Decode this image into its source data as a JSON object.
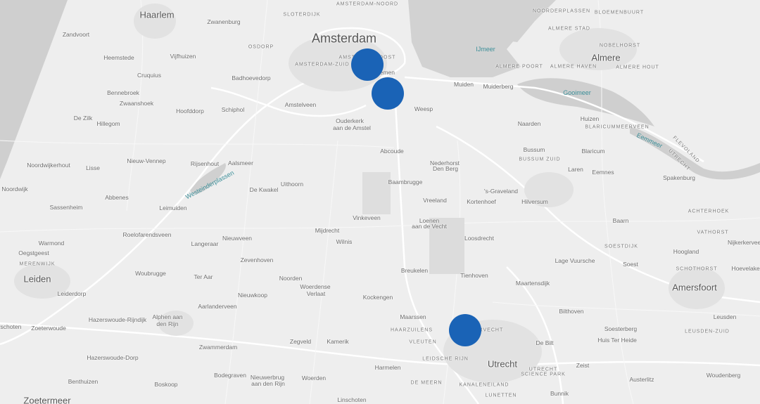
{
  "map": {
    "marker_color": "#1a63b6",
    "water_color": "#cfcfcf",
    "land_color": "#eeeeee",
    "markers": [
      {
        "name": "marker-amsterdam-oost"
      },
      {
        "name": "marker-amsterdam-duivendrecht"
      },
      {
        "name": "marker-utrecht-zuilen"
      }
    ],
    "labels": [
      {
        "text": "Haarlem",
        "kind": "city"
      },
      {
        "text": "Zandvoort",
        "kind": "town"
      },
      {
        "text": "Zwanenburg",
        "kind": "town"
      },
      {
        "text": "SLOTERDIJK",
        "kind": "caps"
      },
      {
        "text": "AMSTERDAM-NOORD",
        "kind": "caps"
      },
      {
        "text": "Amsterdam",
        "kind": "big"
      },
      {
        "text": "OSDORP",
        "kind": "caps"
      },
      {
        "text": "AMSTERDAM-OOST",
        "kind": "caps"
      },
      {
        "text": "AMSTERDAM-ZUID",
        "kind": "caps"
      },
      {
        "text": "Heemstede",
        "kind": "town"
      },
      {
        "text": "Vijfhuizen",
        "kind": "town"
      },
      {
        "text": "Cruquius",
        "kind": "town"
      },
      {
        "text": "Badhoevedorp",
        "kind": "town"
      },
      {
        "text": "Bennebroek",
        "kind": "town"
      },
      {
        "text": "Zwaanshoek",
        "kind": "town"
      },
      {
        "text": "Hoofddorp",
        "kind": "town"
      },
      {
        "text": "Schiphol",
        "kind": "town"
      },
      {
        "text": "Amstelveen",
        "kind": "town"
      },
      {
        "text": "Ouderkerk",
        "kind": "town"
      },
      {
        "text": "aan de Amstel",
        "kind": "town"
      },
      {
        "text": "Weesp",
        "kind": "town"
      },
      {
        "text": "Muiden",
        "kind": "town"
      },
      {
        "text": "Muiderberg",
        "kind": "town"
      },
      {
        "text": "IJmeer",
        "kind": "water"
      },
      {
        "text": "Gooimeer",
        "kind": "water"
      },
      {
        "text": "Naarden",
        "kind": "town"
      },
      {
        "text": "Huizen",
        "kind": "town"
      },
      {
        "text": "BLARICUMMEERVEEN",
        "kind": "caps"
      },
      {
        "text": "Eemmeer",
        "kind": "water"
      },
      {
        "text": "FLEVOLAND",
        "kind": "caps"
      },
      {
        "text": "UTRECHT",
        "kind": "caps"
      },
      {
        "text": "ALMERE STAD",
        "kind": "caps"
      },
      {
        "text": "NOORDERPLASSEN",
        "kind": "caps"
      },
      {
        "text": "BLOEMENBUURT",
        "kind": "caps"
      },
      {
        "text": "Almere",
        "kind": "city"
      },
      {
        "text": "NOBELHORST",
        "kind": "caps"
      },
      {
        "text": "ALMERE POORT",
        "kind": "caps"
      },
      {
        "text": "ALMERE HAVEN",
        "kind": "caps"
      },
      {
        "text": "ALMERE HOUT",
        "kind": "caps"
      },
      {
        "text": "De Zilk",
        "kind": "town"
      },
      {
        "text": "Hillegom",
        "kind": "town"
      },
      {
        "text": "Abcoude",
        "kind": "town"
      },
      {
        "text": "Bussum",
        "kind": "town"
      },
      {
        "text": "BUSSUM ZUID",
        "kind": "caps"
      },
      {
        "text": "Blaricum",
        "kind": "town"
      },
      {
        "text": "Laren",
        "kind": "town"
      },
      {
        "text": "Eemnes",
        "kind": "town"
      },
      {
        "text": "Spakenburg",
        "kind": "town"
      },
      {
        "text": "Nederhorst",
        "kind": "town"
      },
      {
        "text": "Den Berg",
        "kind": "town"
      },
      {
        "text": "Noordwijkerhout",
        "kind": "town"
      },
      {
        "text": "Lisse",
        "kind": "town"
      },
      {
        "text": "Nieuw-Vennep",
        "kind": "town"
      },
      {
        "text": "Rijsenhout",
        "kind": "town"
      },
      {
        "text": "Aalsmeer",
        "kind": "town"
      },
      {
        "text": "Westeinderplassen",
        "kind": "water"
      },
      {
        "text": "Baambrugge",
        "kind": "town"
      },
      {
        "text": "'s-Graveland",
        "kind": "town"
      },
      {
        "text": "Noordwijk",
        "kind": "town"
      },
      {
        "text": "Abbenes",
        "kind": "town"
      },
      {
        "text": "De Kwakel",
        "kind": "town"
      },
      {
        "text": "Uithoorn",
        "kind": "town"
      },
      {
        "text": "Vreeland",
        "kind": "town"
      },
      {
        "text": "Kortenhoef",
        "kind": "town"
      },
      {
        "text": "Hilversum",
        "kind": "town"
      },
      {
        "text": "Sassenheim",
        "kind": "town"
      },
      {
        "text": "Leimuiden",
        "kind": "town"
      },
      {
        "text": "ACHTERHOEK",
        "kind": "caps"
      },
      {
        "text": "Vinkeveen",
        "kind": "town"
      },
      {
        "text": "Loenen",
        "kind": "town"
      },
      {
        "text": "aan de Vecht",
        "kind": "town"
      },
      {
        "text": "Baarn",
        "kind": "town"
      },
      {
        "text": "Roelofarendsveen",
        "kind": "town"
      },
      {
        "text": "Mijdrecht",
        "kind": "town"
      },
      {
        "text": "VATHORST",
        "kind": "caps"
      },
      {
        "text": "Nijkerkerveen",
        "kind": "town"
      },
      {
        "text": "Warmond",
        "kind": "town"
      },
      {
        "text": "Langeraar",
        "kind": "town"
      },
      {
        "text": "Nieuwveen",
        "kind": "town"
      },
      {
        "text": "Wilnis",
        "kind": "town"
      },
      {
        "text": "Loosdrecht",
        "kind": "town"
      },
      {
        "text": "SOESTDIJK",
        "kind": "caps"
      },
      {
        "text": "Hoogland",
        "kind": "town"
      },
      {
        "text": "Oegstgeest",
        "kind": "town"
      },
      {
        "text": "MERENWIJK",
        "kind": "caps"
      },
      {
        "text": "Zevenhoven",
        "kind": "town"
      },
      {
        "text": "Lage Vuursche",
        "kind": "town"
      },
      {
        "text": "Soest",
        "kind": "town"
      },
      {
        "text": "SCHOTHORST",
        "kind": "caps"
      },
      {
        "text": "Hoevelaken",
        "kind": "town"
      },
      {
        "text": "Woubrugge",
        "kind": "town"
      },
      {
        "text": "Breukelen",
        "kind": "town"
      },
      {
        "text": "Tienhoven",
        "kind": "town"
      },
      {
        "text": "Ter Aar",
        "kind": "town"
      },
      {
        "text": "Leiden",
        "kind": "city"
      },
      {
        "text": "Noorden",
        "kind": "town"
      },
      {
        "text": "Woerdense",
        "kind": "town"
      },
      {
        "text": "Verlaat",
        "kind": "town"
      },
      {
        "text": "Maartensdijk",
        "kind": "town"
      },
      {
        "text": "Amersfoort",
        "kind": "city"
      },
      {
        "text": "Leiderdorp",
        "kind": "town"
      },
      {
        "text": "Nieuwkoop",
        "kind": "town"
      },
      {
        "text": "Aarlanderveen",
        "kind": "town"
      },
      {
        "text": "Kockengen",
        "kind": "town"
      },
      {
        "text": "Bilthoven",
        "kind": "town"
      },
      {
        "text": "Hazerswoude-Rijndijk",
        "kind": "town"
      },
      {
        "text": "Alphen aan",
        "kind": "town"
      },
      {
        "text": "den Rijn",
        "kind": "town"
      },
      {
        "text": "Maarssen",
        "kind": "town"
      },
      {
        "text": "Leusden",
        "kind": "town"
      },
      {
        "text": "rschoten",
        "kind": "town"
      },
      {
        "text": "Zoeterwoude",
        "kind": "town"
      },
      {
        "text": "Soesterberg",
        "kind": "town"
      },
      {
        "text": "HAARZUILENS",
        "kind": "caps"
      },
      {
        "text": "OVERVECHT",
        "kind": "caps"
      },
      {
        "text": "Huis Ter Heide",
        "kind": "town"
      },
      {
        "text": "LEUSDEN-ZUID",
        "kind": "caps"
      },
      {
        "text": "VLEUTEN",
        "kind": "caps"
      },
      {
        "text": "Zwammerdam",
        "kind": "town"
      },
      {
        "text": "Zegveld",
        "kind": "town"
      },
      {
        "text": "Kamerik",
        "kind": "town"
      },
      {
        "text": "De Bilt",
        "kind": "town"
      },
      {
        "text": "Hazerswoude-Dorp",
        "kind": "town"
      },
      {
        "text": "Harmelen",
        "kind": "town"
      },
      {
        "text": "LEIDSCHE RIJN",
        "kind": "caps"
      },
      {
        "text": "Utrecht",
        "kind": "city"
      },
      {
        "text": "UTRECHT",
        "kind": "caps"
      },
      {
        "text": "SCIENCE PARK",
        "kind": "caps"
      },
      {
        "text": "Zeist",
        "kind": "town"
      },
      {
        "text": "Benthuizen",
        "kind": "town"
      },
      {
        "text": "Boskoop",
        "kind": "town"
      },
      {
        "text": "Bodegraven",
        "kind": "town"
      },
      {
        "text": "Woerden",
        "kind": "town"
      },
      {
        "text": "Nieuwerbrug",
        "kind": "town"
      },
      {
        "text": "aan den Rijn",
        "kind": "town"
      },
      {
        "text": "DE MEERN",
        "kind": "caps"
      },
      {
        "text": "KANALENEILAND",
        "kind": "caps"
      },
      {
        "text": "Austerlitz",
        "kind": "town"
      },
      {
        "text": "Woudenberg",
        "kind": "town"
      },
      {
        "text": "Zoetermeer",
        "kind": "city"
      },
      {
        "text": "Linschoten",
        "kind": "town"
      },
      {
        "text": "LUNETTEN",
        "kind": "caps"
      },
      {
        "text": "Bunnik",
        "kind": "town"
      },
      {
        "text": "Gemen",
        "kind": "town"
      }
    ]
  }
}
